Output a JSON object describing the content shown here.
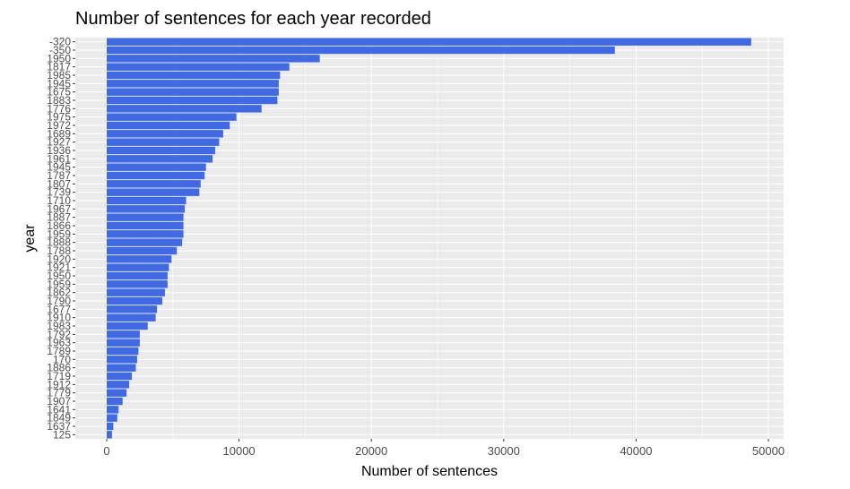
{
  "chart_data": {
    "type": "bar",
    "orientation": "horizontal",
    "title": "Number of sentences for each year recorded",
    "xlabel": "Number of sentences",
    "ylabel": "year",
    "xlim": [
      0,
      51000
    ],
    "x_ticks": [
      0,
      10000,
      20000,
      30000,
      40000,
      50000
    ],
    "x_tick_labels": [
      "0",
      "10000",
      "20000",
      "30000",
      "40000",
      "50000"
    ],
    "bar_color": "#4169E1",
    "panel_background": "#EBEBEB",
    "grid": true,
    "categories": [
      "-320",
      "-350",
      "1950",
      "1817",
      "1985",
      "1945",
      "1675",
      "1883",
      "1776",
      "1975",
      "1972",
      "1689",
      "1927",
      "1936",
      "1961",
      "1945",
      "1787",
      "1807",
      "1739",
      "1710",
      "1967",
      "1887",
      "1866",
      "1959",
      "1888",
      "1788",
      "1920",
      "1921",
      "1950",
      "1959",
      "1862",
      "1790",
      "1677",
      "1910",
      "1983",
      "1792",
      "1963",
      "1789",
      "170",
      "1886",
      "1719",
      "1912",
      "1779",
      "1907",
      "1641",
      "1849",
      "1637",
      "125"
    ],
    "values": [
      48700,
      38400,
      16100,
      13800,
      13100,
      13000,
      13000,
      12900,
      11700,
      9800,
      9300,
      8800,
      8500,
      8200,
      8000,
      7500,
      7400,
      7100,
      7000,
      6000,
      5900,
      5800,
      5800,
      5800,
      5700,
      5300,
      4900,
      4700,
      4600,
      4600,
      4400,
      4200,
      3800,
      3700,
      3100,
      2500,
      2500,
      2400,
      2300,
      2200,
      1900,
      1700,
      1500,
      1200,
      900,
      800,
      500,
      400
    ]
  }
}
